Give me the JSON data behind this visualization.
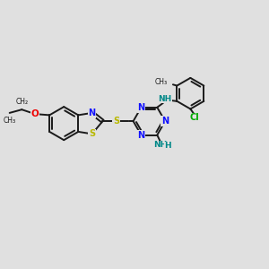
{
  "bg_color": "#e0e0e0",
  "bond_color": "#1a1a1a",
  "N_color": "#1010ff",
  "S_color": "#b8b800",
  "O_color": "#ee0000",
  "Cl_color": "#00aa00",
  "NH_color": "#008888",
  "bond_width": 1.4,
  "figsize": [
    3.0,
    3.0
  ],
  "dpi": 100,
  "xlim": [
    0,
    12
  ],
  "ylim": [
    0,
    10
  ]
}
